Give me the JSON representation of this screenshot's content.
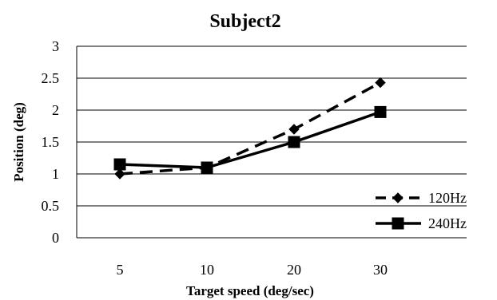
{
  "chart_data": {
    "type": "line",
    "title": "Subject2",
    "xlabel": "Target speed (deg/sec)",
    "ylabel": "Position (deg)",
    "categories": [
      "5",
      "10",
      "20",
      "30"
    ],
    "ylim": [
      0,
      3
    ],
    "yticks": [
      "0",
      "0.5",
      "1",
      "1.5",
      "2",
      "2.5",
      "3"
    ],
    "grid": true,
    "legend": "right",
    "series": [
      {
        "name": "120Hz",
        "values": [
          1.0,
          1.1,
          1.7,
          2.43
        ],
        "line": "dashed",
        "marker": "diamond",
        "color": "#000000"
      },
      {
        "name": "240Hz",
        "values": [
          1.15,
          1.1,
          1.5,
          1.97
        ],
        "line": "solid",
        "marker": "square",
        "color": "#000000"
      }
    ]
  }
}
